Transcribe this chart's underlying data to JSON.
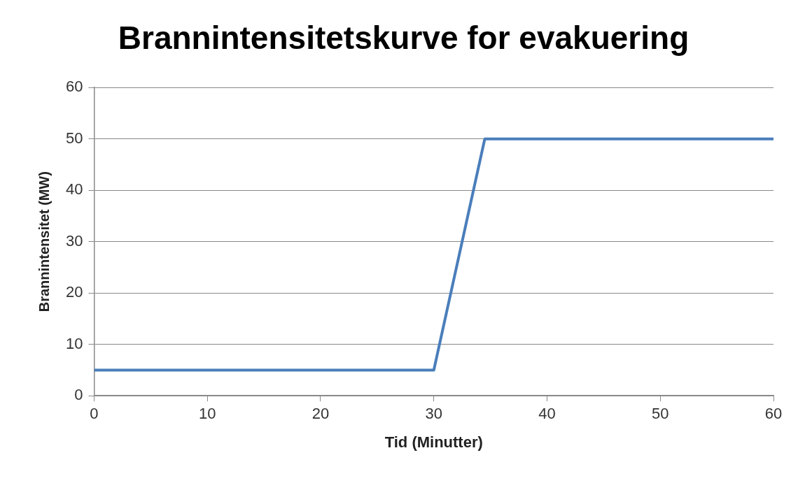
{
  "chart_data": {
    "type": "line",
    "title": "Brannintensitetskurve for evakuering",
    "xlabel": "Tid (Minutter)",
    "ylabel": "Brannintensitet (MW)",
    "x": [
      0,
      30,
      34.5,
      60
    ],
    "series": [
      {
        "color": "#4a7ebb",
        "values": [
          5,
          5,
          50,
          50
        ]
      }
    ],
    "xlim": [
      0,
      60
    ],
    "xticks": [
      0,
      10,
      20,
      30,
      40,
      50,
      60
    ],
    "ylim": [
      0,
      60
    ],
    "yticks": [
      0,
      10,
      20,
      30,
      40,
      50,
      60
    ],
    "grid": "y",
    "legend": false,
    "marker": "none",
    "line_style": "solid"
  }
}
